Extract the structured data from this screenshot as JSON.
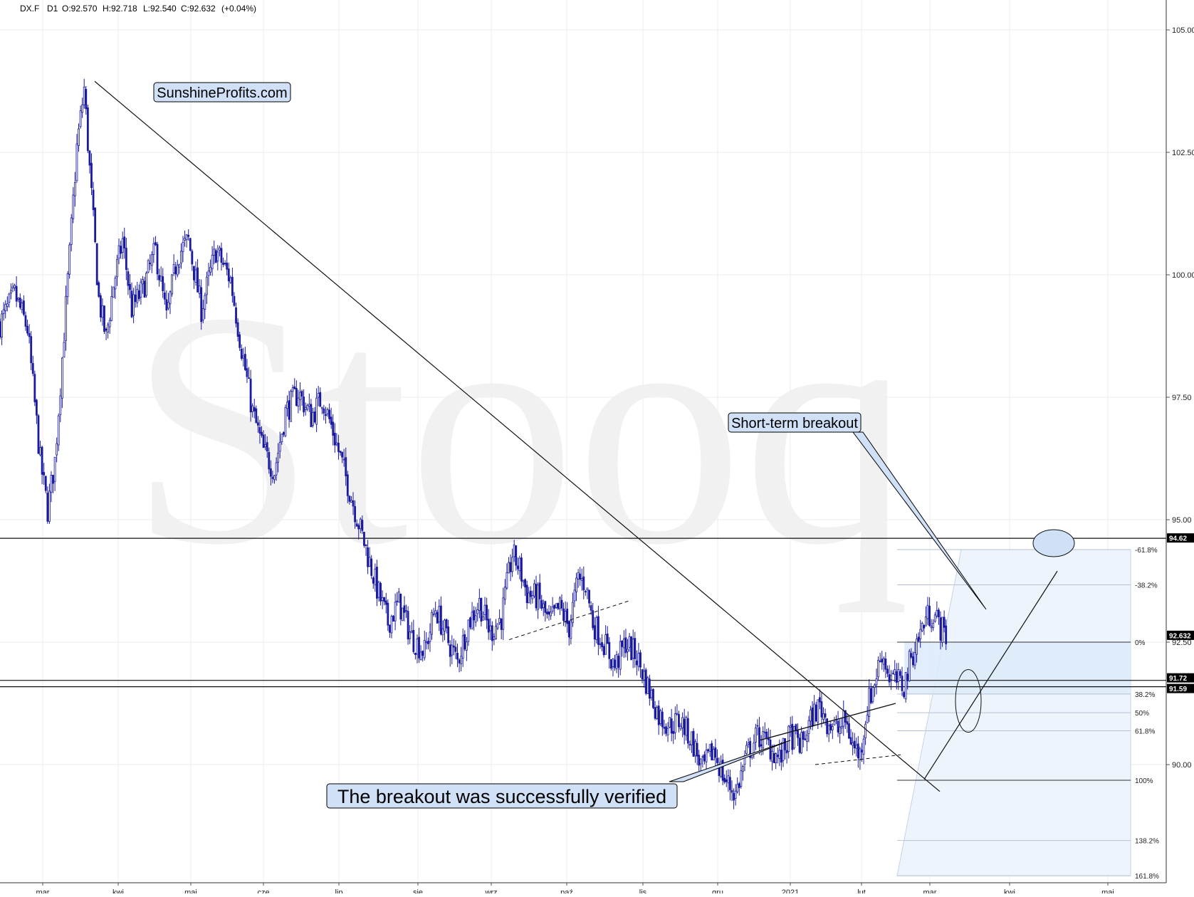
{
  "header": {
    "symbol": "DX.F",
    "interval": "D1",
    "open": "O:92.570",
    "high": "H:92.718",
    "low": "L:92.540",
    "close": "C:92.632",
    "change": "(+0.04%)"
  },
  "watermark": "Stooq",
  "colors": {
    "candle": "#1a1aa0",
    "grid": "#eeeeee",
    "fib_fill": "#dceaf9",
    "callout_fill": "#cfe0f7"
  },
  "chart_data": {
    "type": "candlestick",
    "y_range": [
      88.0,
      105.3
    ],
    "y_ticks": [
      {
        "v": 105.0,
        "label": "105.00"
      },
      {
        "v": 102.5,
        "label": "102.50"
      },
      {
        "v": 100.0,
        "label": "100.00"
      },
      {
        "v": 97.5,
        "label": "97.50"
      },
      {
        "v": 95.0,
        "label": "95.00"
      },
      {
        "v": 92.5,
        "label": "92.50"
      },
      {
        "v": 90.0,
        "label": "90.00"
      }
    ],
    "x_ticks": [
      "mar",
      "kwi",
      "maj",
      "cze",
      "lip",
      "sie",
      "wrz",
      "paź",
      "lis",
      "gru",
      "2021",
      "lut",
      "mar",
      "kwi",
      "maj"
    ],
    "price_tags": [
      {
        "value": 94.62,
        "label": "94.62"
      },
      {
        "value": 92.632,
        "label": "92.632"
      },
      {
        "value": 91.72,
        "label": "91.72"
      },
      {
        "value": 91.59,
        "label": "91.59"
      }
    ],
    "horizontal_lines": [
      94.62,
      91.72,
      91.59
    ],
    "trend_points": [
      {
        "i": 0,
        "v": 99.0
      },
      {
        "i": 8,
        "v": 99.6
      },
      {
        "i": 15,
        "v": 98.9
      },
      {
        "i": 22,
        "v": 96.2
      },
      {
        "i": 26,
        "v": 95.2
      },
      {
        "i": 30,
        "v": 96.2
      },
      {
        "i": 34,
        "v": 98.3
      },
      {
        "i": 38,
        "v": 100.4
      },
      {
        "i": 42,
        "v": 102.6
      },
      {
        "i": 46,
        "v": 103.8
      },
      {
        "i": 50,
        "v": 101.6
      },
      {
        "i": 54,
        "v": 99.5
      },
      {
        "i": 58,
        "v": 98.7
      },
      {
        "i": 62,
        "v": 99.8
      },
      {
        "i": 67,
        "v": 100.7
      },
      {
        "i": 72,
        "v": 99.3
      },
      {
        "i": 78,
        "v": 99.7
      },
      {
        "i": 85,
        "v": 100.5
      },
      {
        "i": 91,
        "v": 99.1
      },
      {
        "i": 97,
        "v": 100.4
      },
      {
        "i": 103,
        "v": 100.7
      },
      {
        "i": 110,
        "v": 99.3
      },
      {
        "i": 118,
        "v": 100.5
      },
      {
        "i": 126,
        "v": 99.9
      },
      {
        "i": 132,
        "v": 98.5
      },
      {
        "i": 138,
        "v": 97.2
      },
      {
        "i": 144,
        "v": 96.4
      },
      {
        "i": 150,
        "v": 96.0
      },
      {
        "i": 156,
        "v": 97.2
      },
      {
        "i": 163,
        "v": 97.6
      },
      {
        "i": 170,
        "v": 97.1
      },
      {
        "i": 176,
        "v": 97.5
      },
      {
        "i": 182,
        "v": 96.8
      },
      {
        "i": 188,
        "v": 96.0
      },
      {
        "i": 194,
        "v": 95.2
      },
      {
        "i": 200,
        "v": 94.4
      },
      {
        "i": 206,
        "v": 93.6
      },
      {
        "i": 212,
        "v": 92.9
      },
      {
        "i": 218,
        "v": 93.3
      },
      {
        "i": 225,
        "v": 92.6
      },
      {
        "i": 232,
        "v": 92.3
      },
      {
        "i": 238,
        "v": 93.2
      },
      {
        "i": 244,
        "v": 92.6
      },
      {
        "i": 250,
        "v": 92.1
      },
      {
        "i": 256,
        "v": 92.9
      },
      {
        "i": 262,
        "v": 93.3
      },
      {
        "i": 268,
        "v": 92.7
      },
      {
        "i": 274,
        "v": 93.0
      },
      {
        "i": 280,
        "v": 94.3
      },
      {
        "i": 284,
        "v": 94.0
      },
      {
        "i": 288,
        "v": 93.5
      },
      {
        "i": 294,
        "v": 93.4
      },
      {
        "i": 300,
        "v": 92.9
      },
      {
        "i": 306,
        "v": 93.2
      },
      {
        "i": 311,
        "v": 92.8
      },
      {
        "i": 316,
        "v": 93.8
      },
      {
        "i": 320,
        "v": 93.7
      },
      {
        "i": 324,
        "v": 92.9
      },
      {
        "i": 330,
        "v": 92.5
      },
      {
        "i": 336,
        "v": 92.0
      },
      {
        "i": 342,
        "v": 92.5
      },
      {
        "i": 348,
        "v": 92.2
      },
      {
        "i": 354,
        "v": 91.6
      },
      {
        "i": 360,
        "v": 91.0
      },
      {
        "i": 366,
        "v": 90.8
      },
      {
        "i": 372,
        "v": 90.9
      },
      {
        "i": 378,
        "v": 90.5
      },
      {
        "i": 384,
        "v": 89.9
      },
      {
        "i": 390,
        "v": 90.3
      },
      {
        "i": 396,
        "v": 89.7
      },
      {
        "i": 402,
        "v": 89.4
      },
      {
        "i": 408,
        "v": 90.2
      },
      {
        "i": 414,
        "v": 90.6
      },
      {
        "i": 420,
        "v": 90.4
      },
      {
        "i": 426,
        "v": 90.1
      },
      {
        "i": 432,
        "v": 90.6
      },
      {
        "i": 438,
        "v": 90.4
      },
      {
        "i": 444,
        "v": 91.0
      },
      {
        "i": 448,
        "v": 91.2
      },
      {
        "i": 452,
        "v": 90.9
      },
      {
        "i": 458,
        "v": 90.7
      },
      {
        "i": 462,
        "v": 90.9
      },
      {
        "i": 466,
        "v": 90.4
      },
      {
        "i": 470,
        "v": 90.2
      },
      {
        "i": 474,
        "v": 91.2
      },
      {
        "i": 478,
        "v": 91.7
      },
      {
        "i": 482,
        "v": 92.3
      },
      {
        "i": 486,
        "v": 91.8
      },
      {
        "i": 490,
        "v": 91.7
      },
      {
        "i": 494,
        "v": 91.6
      },
      {
        "i": 498,
        "v": 92.2
      },
      {
        "i": 502,
        "v": 92.6
      },
      {
        "i": 506,
        "v": 93.0
      },
      {
        "i": 510,
        "v": 93.1
      },
      {
        "i": 514,
        "v": 92.8
      },
      {
        "i": 518,
        "v": 92.6
      }
    ],
    "fibonacci_levels": [
      {
        "value": 94.39,
        "label": "-61.8%"
      },
      {
        "value": 93.67,
        "label": "-38.2%"
      },
      {
        "value": 92.5,
        "label": "0%"
      },
      {
        "value": 91.44,
        "label": "38.2%"
      },
      {
        "value": 91.06,
        "label": "50%"
      },
      {
        "value": 90.69,
        "label": "61.8%"
      },
      {
        "value": 89.68,
        "label": "100%"
      },
      {
        "value": 88.45,
        "label": "138.2%"
      },
      {
        "value": 87.73,
        "label": "161.8%"
      }
    ],
    "annotations": [
      {
        "text": "SunshineProfits.com"
      },
      {
        "text": "Short-term breakout"
      },
      {
        "text": "The breakout was successfully verified"
      }
    ]
  }
}
